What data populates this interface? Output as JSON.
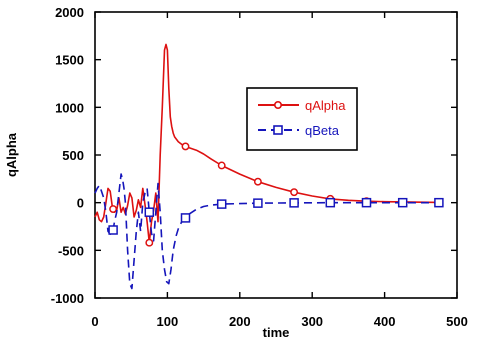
{
  "chart_data": {
    "type": "line",
    "title": "",
    "xlabel": "time",
    "ylabel": "qAlpha",
    "xlim": [
      0,
      500
    ],
    "ylim": [
      -1000,
      2000
    ],
    "xticks": [
      "0",
      "100",
      "200",
      "300",
      "400",
      "500"
    ],
    "yticks": [
      "-1000",
      "-500",
      "0",
      "500",
      "1000",
      "1500",
      "2000"
    ],
    "grid": false,
    "legend_position": "center-right",
    "series": [
      {
        "name": "qAlpha",
        "color": "#dd1111",
        "line_style": "solid",
        "marker": "circle",
        "marker_x": [
          25,
          75,
          125,
          175,
          225,
          275,
          325,
          375,
          425,
          475
        ],
        "x": [
          0,
          3,
          6,
          9,
          12,
          15,
          18,
          21,
          24,
          27,
          30,
          33,
          36,
          39,
          42,
          45,
          48,
          51,
          54,
          57,
          60,
          63,
          66,
          69,
          72,
          75,
          78,
          81,
          84,
          87,
          90,
          93,
          96,
          98,
          100,
          102,
          104,
          106,
          108,
          110,
          115,
          120,
          125,
          130,
          140,
          150,
          160,
          175,
          200,
          225,
          250,
          275,
          300,
          325,
          350,
          375,
          400,
          425,
          450,
          475,
          480
        ],
        "y": [
          -150,
          -100,
          -180,
          -200,
          -150,
          0,
          150,
          120,
          -50,
          -100,
          -80,
          50,
          -100,
          -50,
          -120,
          -30,
          100,
          50,
          -150,
          -80,
          30,
          -50,
          150,
          -20,
          -200,
          -420,
          -200,
          -80,
          100,
          -200,
          500,
          1000,
          1600,
          1660,
          1600,
          1200,
          900,
          800,
          730,
          690,
          640,
          610,
          590,
          575,
          550,
          510,
          460,
          390,
          300,
          220,
          160,
          110,
          70,
          40,
          25,
          15,
          10,
          8,
          5,
          3,
          2
        ]
      },
      {
        "name": "qBeta",
        "color": "#1515bb",
        "line_style": "dashed",
        "marker": "square",
        "marker_x": [
          25,
          75,
          125,
          175,
          225,
          275,
          325,
          375,
          425,
          475
        ],
        "x": [
          0,
          3,
          6,
          9,
          12,
          15,
          18,
          21,
          24,
          27,
          30,
          33,
          36,
          38,
          40,
          42,
          45,
          48,
          51,
          54,
          57,
          60,
          63,
          66,
          69,
          72,
          75,
          78,
          81,
          84,
          87,
          90,
          93,
          96,
          99,
          102,
          105,
          108,
          112,
          116,
          120,
          125,
          130,
          140,
          150,
          160,
          175,
          200,
          225,
          250,
          275,
          300,
          325,
          350,
          375,
          400,
          425,
          450,
          475,
          480
        ],
        "y": [
          100,
          150,
          180,
          120,
          50,
          -100,
          -300,
          -330,
          -330,
          -200,
          -100,
          100,
          300,
          250,
          150,
          0,
          -500,
          -850,
          -900,
          -600,
          -300,
          -100,
          -300,
          0,
          100,
          150,
          -100,
          -320,
          -400,
          -100,
          200,
          -100,
          -500,
          -700,
          -830,
          -850,
          -700,
          -500,
          -350,
          -250,
          -200,
          -160,
          -120,
          -70,
          -40,
          -25,
          -15,
          -10,
          -5,
          -3,
          -2,
          -1,
          0,
          0,
          0,
          0,
          0,
          0,
          0,
          0
        ]
      }
    ]
  }
}
